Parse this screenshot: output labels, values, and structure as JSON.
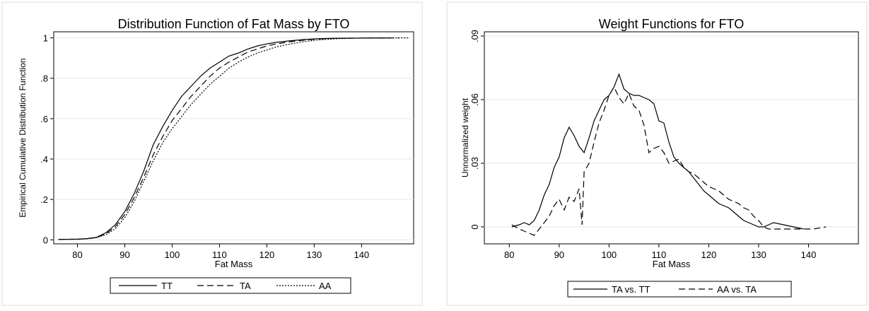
{
  "chart_data": [
    {
      "type": "line",
      "title": "Distribution Function of Fat Mass by FTO",
      "xlabel": "Fat Mass",
      "ylabel": "Empirical Cumulative Distribution Function",
      "xlim": [
        75,
        151
      ],
      "ylim": [
        -0.02,
        1.03
      ],
      "x_ticks": [
        80,
        90,
        100,
        110,
        120,
        130,
        140
      ],
      "y_ticks": [
        0,
        0.2,
        0.4,
        0.6,
        0.8,
        1
      ],
      "y_tick_labels": [
        "0",
        ".2",
        ".4",
        ".6",
        ".8",
        "1"
      ],
      "grid": "horizontal",
      "legend_position": "bottom",
      "series": [
        {
          "name": "TT",
          "dash": "solid",
          "points": [
            [
              76,
              0.002
            ],
            [
              80,
              0.003
            ],
            [
              82,
              0.006
            ],
            [
              84,
              0.012
            ],
            [
              86,
              0.035
            ],
            [
              88,
              0.075
            ],
            [
              90,
              0.14
            ],
            [
              92,
              0.23
            ],
            [
              94,
              0.34
            ],
            [
              96,
              0.47
            ],
            [
              98,
              0.56
            ],
            [
              100,
              0.64
            ],
            [
              102,
              0.71
            ],
            [
              104,
              0.76
            ],
            [
              106,
              0.81
            ],
            [
              108,
              0.85
            ],
            [
              110,
              0.88
            ],
            [
              112,
              0.91
            ],
            [
              114,
              0.925
            ],
            [
              116,
              0.945
            ],
            [
              118,
              0.96
            ],
            [
              120,
              0.97
            ],
            [
              122,
              0.978
            ],
            [
              125,
              0.986
            ],
            [
              128,
              0.992
            ],
            [
              131,
              0.996
            ],
            [
              135,
              0.998
            ],
            [
              140,
              0.999
            ],
            [
              146,
              1.0
            ]
          ]
        },
        {
          "name": "TA",
          "dash": "dashed",
          "points": [
            [
              76,
              0.002
            ],
            [
              80,
              0.003
            ],
            [
              82,
              0.006
            ],
            [
              84,
              0.011
            ],
            [
              86,
              0.03
            ],
            [
              88,
              0.065
            ],
            [
              90,
              0.125
            ],
            [
              92,
              0.21
            ],
            [
              94,
              0.31
            ],
            [
              96,
              0.42
            ],
            [
              98,
              0.51
            ],
            [
              100,
              0.59
            ],
            [
              102,
              0.65
            ],
            [
              104,
              0.71
            ],
            [
              106,
              0.76
            ],
            [
              108,
              0.81
            ],
            [
              110,
              0.85
            ],
            [
              112,
              0.88
            ],
            [
              114,
              0.905
            ],
            [
              116,
              0.93
            ],
            [
              118,
              0.945
            ],
            [
              120,
              0.96
            ],
            [
              122,
              0.97
            ],
            [
              125,
              0.981
            ],
            [
              128,
              0.989
            ],
            [
              131,
              0.995
            ],
            [
              135,
              0.998
            ],
            [
              140,
              0.999
            ],
            [
              148,
              1.0
            ]
          ]
        },
        {
          "name": "AA",
          "dash": "dotted",
          "points": [
            [
              76,
              0.002
            ],
            [
              80,
              0.003
            ],
            [
              82,
              0.005
            ],
            [
              84,
              0.01
            ],
            [
              86,
              0.025
            ],
            [
              88,
              0.055
            ],
            [
              90,
              0.11
            ],
            [
              92,
              0.19
            ],
            [
              94,
              0.29
            ],
            [
              96,
              0.39
            ],
            [
              98,
              0.48
            ],
            [
              100,
              0.55
            ],
            [
              102,
              0.61
            ],
            [
              104,
              0.67
            ],
            [
              106,
              0.72
            ],
            [
              108,
              0.77
            ],
            [
              110,
              0.81
            ],
            [
              112,
              0.85
            ],
            [
              114,
              0.88
            ],
            [
              116,
              0.905
            ],
            [
              118,
              0.925
            ],
            [
              120,
              0.94
            ],
            [
              122,
              0.955
            ],
            [
              125,
              0.97
            ],
            [
              128,
              0.982
            ],
            [
              131,
              0.99
            ],
            [
              135,
              0.996
            ],
            [
              140,
              0.999
            ],
            [
              150,
              1.0
            ]
          ]
        }
      ]
    },
    {
      "type": "line",
      "title": "Weight Functions for FTO",
      "xlabel": "Fat Mass",
      "ylabel": "Unnormalized weight",
      "xlim": [
        75,
        150
      ],
      "ylim": [
        -0.008,
        0.092
      ],
      "x_ticks": [
        80,
        90,
        100,
        110,
        120,
        130,
        140
      ],
      "y_ticks": [
        0,
        0.03,
        0.06,
        0.09
      ],
      "y_tick_labels": [
        "0",
        ".03",
        ".06",
        ".09"
      ],
      "grid": "horizontal",
      "legend_position": "bottom",
      "series": [
        {
          "name": "TA vs. TT",
          "dash": "solid",
          "points": [
            [
              80.5,
              0.0
            ],
            [
              82,
              0.001
            ],
            [
              83,
              0.002
            ],
            [
              84,
              0.001
            ],
            [
              85,
              0.003
            ],
            [
              86,
              0.008
            ],
            [
              87,
              0.015
            ],
            [
              88,
              0.02
            ],
            [
              89,
              0.028
            ],
            [
              90,
              0.033
            ],
            [
              91,
              0.042
            ],
            [
              92,
              0.047
            ],
            [
              93,
              0.043
            ],
            [
              94,
              0.038
            ],
            [
              95,
              0.035
            ],
            [
              96,
              0.042
            ],
            [
              97,
              0.05
            ],
            [
              98,
              0.055
            ],
            [
              99,
              0.06
            ],
            [
              100,
              0.062
            ],
            [
              101,
              0.066
            ],
            [
              102,
              0.072
            ],
            [
              103,
              0.065
            ],
            [
              104,
              0.063
            ],
            [
              105,
              0.062
            ],
            [
              106,
              0.062
            ],
            [
              107,
              0.061
            ],
            [
              108,
              0.06
            ],
            [
              109,
              0.058
            ],
            [
              110,
              0.05
            ],
            [
              111,
              0.049
            ],
            [
              112,
              0.04
            ],
            [
              113,
              0.033
            ],
            [
              114,
              0.03
            ],
            [
              115,
              0.028
            ],
            [
              116,
              0.026
            ],
            [
              117,
              0.023
            ],
            [
              118,
              0.02
            ],
            [
              119,
              0.017
            ],
            [
              120,
              0.015
            ],
            [
              121,
              0.013
            ],
            [
              122,
              0.011
            ],
            [
              123,
              0.01
            ],
            [
              124,
              0.009
            ],
            [
              125,
              0.007
            ],
            [
              126,
              0.005
            ],
            [
              127,
              0.003
            ],
            [
              128,
              0.002
            ],
            [
              129,
              0.001
            ],
            [
              130,
              0.0
            ],
            [
              131,
              0.0
            ],
            [
              133,
              0.002
            ],
            [
              135,
              0.001
            ],
            [
              137,
              0.0
            ],
            [
              139,
              -0.001
            ]
          ]
        },
        {
          "name": "AA vs. TA",
          "dash": "dashed",
          "points": [
            [
              80.5,
              0.001
            ],
            [
              82,
              -0.001
            ],
            [
              83,
              -0.002
            ],
            [
              84,
              -0.003
            ],
            [
              85,
              -0.004
            ],
            [
              86,
              -0.001
            ],
            [
              87,
              0.002
            ],
            [
              88,
              0.005
            ],
            [
              89,
              0.01
            ],
            [
              90,
              0.013
            ],
            [
              91,
              0.008
            ],
            [
              92,
              0.014
            ],
            [
              93,
              0.012
            ],
            [
              94,
              0.018
            ],
            [
              94.6,
              0.001
            ],
            [
              95,
              0.026
            ],
            [
              96,
              0.03
            ],
            [
              97,
              0.04
            ],
            [
              98,
              0.049
            ],
            [
              99,
              0.055
            ],
            [
              100,
              0.062
            ],
            [
              101,
              0.066
            ],
            [
              102,
              0.061
            ],
            [
              103,
              0.058
            ],
            [
              104,
              0.063
            ],
            [
              105,
              0.057
            ],
            [
              106,
              0.055
            ],
            [
              107,
              0.048
            ],
            [
              108,
              0.035
            ],
            [
              109,
              0.037
            ],
            [
              110,
              0.038
            ],
            [
              111,
              0.035
            ],
            [
              112,
              0.03
            ],
            [
              113,
              0.031
            ],
            [
              114,
              0.032
            ],
            [
              115,
              0.028
            ],
            [
              116,
              0.026
            ],
            [
              117,
              0.025
            ],
            [
              118,
              0.023
            ],
            [
              119,
              0.021
            ],
            [
              120,
              0.019
            ],
            [
              121,
              0.018
            ],
            [
              122,
              0.017
            ],
            [
              123,
              0.015
            ],
            [
              124,
              0.013
            ],
            [
              125,
              0.012
            ],
            [
              126,
              0.011
            ],
            [
              127,
              0.009
            ],
            [
              128,
              0.008
            ],
            [
              129,
              0.005
            ],
            [
              130,
              0.003
            ],
            [
              131,
              0.0
            ],
            [
              132,
              -0.001
            ],
            [
              135,
              -0.001
            ],
            [
              138,
              -0.001
            ],
            [
              141,
              -0.001
            ],
            [
              143.5,
              0.0
            ]
          ]
        }
      ]
    }
  ]
}
